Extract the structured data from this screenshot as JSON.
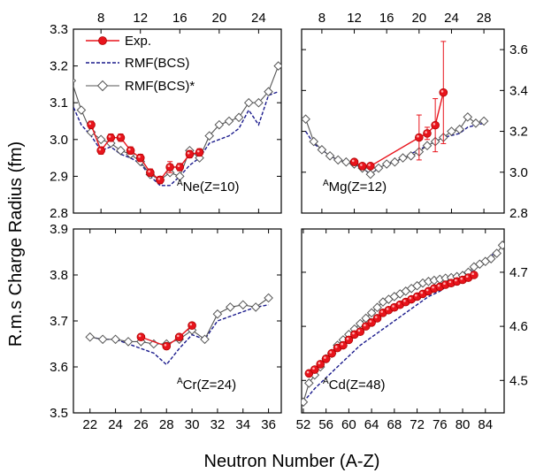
{
  "figure": {
    "ylabel": "R.m.s Charge Radius (fm)",
    "xlabel": "Neutron Number (A-Z)"
  },
  "legend": {
    "items": [
      {
        "label": "Exp.",
        "style": "exp"
      },
      {
        "label": "RMF(BCS)",
        "style": "dashed"
      },
      {
        "label": "RMF(BCS)*",
        "style": "diamond"
      }
    ]
  },
  "colors": {
    "exp": "#e8141c",
    "rmf": "#1a1a8c",
    "rmf_star": "#555555",
    "axis": "#000000"
  },
  "chart_data": [
    {
      "type": "line",
      "panel": "Ne",
      "label": "Ne(Z=10)",
      "label_sup": "A",
      "x_ticks": [
        8,
        12,
        16,
        20,
        24
      ],
      "x_axis_position": "top",
      "xlim": [
        5.2,
        26.3
      ],
      "y_ticks": [
        2.8,
        2.9,
        3.0,
        3.1,
        3.2,
        3.3
      ],
      "y_axis_position": "left",
      "ylim": [
        2.8,
        3.3
      ],
      "series": [
        {
          "name": "Exp.",
          "style": "exp",
          "x": [
            7,
            8,
            9,
            10,
            11,
            12,
            13,
            14,
            15,
            16,
            17,
            18
          ],
          "y": [
            3.04,
            2.97,
            3.005,
            3.005,
            2.97,
            2.95,
            2.91,
            2.89,
            2.925,
            2.925,
            2.96,
            2.965
          ],
          "err": [
            0.01,
            0.01,
            0.01,
            0.01,
            0.01,
            0.01,
            0.01,
            0.01,
            0.015,
            0.01,
            0.01,
            0.01
          ]
        },
        {
          "name": "RMF(BCS)",
          "style": "dashed",
          "x": [
            5,
            6,
            7,
            8,
            9,
            10,
            11,
            12,
            13,
            14,
            15,
            16,
            17,
            18,
            19,
            20,
            21,
            22,
            23,
            24,
            25,
            26
          ],
          "y": [
            3.1,
            3.04,
            3.01,
            2.97,
            2.98,
            2.96,
            2.95,
            2.935,
            2.9,
            2.875,
            2.875,
            2.9,
            2.93,
            2.95,
            2.99,
            3.0,
            3.01,
            3.03,
            3.08,
            3.04,
            3.12,
            3.13
          ]
        },
        {
          "name": "RMF(BCS)*",
          "style": "diamond",
          "x": [
            5,
            6,
            7,
            8,
            9,
            10,
            11,
            12,
            13,
            14,
            15,
            16,
            17,
            18,
            19,
            20,
            21,
            22,
            23,
            24,
            25,
            26
          ],
          "y": [
            3.16,
            3.08,
            3.02,
            3.0,
            2.99,
            2.97,
            2.96,
            2.94,
            2.905,
            2.89,
            2.91,
            2.9,
            2.97,
            2.95,
            3.01,
            3.04,
            3.05,
            3.06,
            3.1,
            3.1,
            3.13,
            3.2
          ]
        }
      ]
    },
    {
      "type": "line",
      "panel": "Mg",
      "label": "Mg(Z=12)",
      "label_sup": "A",
      "x_ticks": [
        8,
        12,
        16,
        20,
        24,
        28
      ],
      "x_axis_position": "top",
      "xlim": [
        5.5,
        30.5
      ],
      "y_ticks": [
        2.8,
        3.0,
        3.2,
        3.4,
        3.6
      ],
      "y_axis_position": "right",
      "ylim": [
        2.8,
        3.7
      ],
      "series": [
        {
          "name": "Exp.",
          "style": "exp",
          "x": [
            12,
            13,
            14,
            20,
            21,
            22,
            23
          ],
          "y": [
            3.05,
            3.03,
            3.03,
            3.17,
            3.19,
            3.23,
            3.39
          ],
          "err": [
            0.005,
            0.005,
            0.005,
            0.11,
            0.03,
            0.13,
            0.25
          ]
        },
        {
          "name": "RMF(BCS)",
          "style": "dashed",
          "x": [
            6,
            7,
            8,
            9,
            10,
            11,
            12,
            13,
            14,
            15,
            16,
            17,
            18,
            19,
            20,
            21,
            22,
            23,
            24,
            25,
            26,
            27,
            28
          ],
          "y": [
            3.2,
            3.14,
            3.11,
            3.08,
            3.06,
            3.05,
            3.04,
            3.02,
            2.99,
            3.02,
            3.04,
            3.05,
            3.07,
            3.09,
            3.11,
            3.13,
            3.15,
            3.17,
            3.18,
            3.19,
            3.22,
            3.23,
            3.24
          ]
        },
        {
          "name": "RMF(BCS)*",
          "style": "diamond",
          "x": [
            6,
            7,
            8,
            9,
            10,
            11,
            12,
            13,
            14,
            15,
            16,
            17,
            18,
            19,
            20,
            21,
            22,
            23,
            24,
            25,
            26,
            27,
            28
          ],
          "y": [
            3.26,
            3.15,
            3.11,
            3.08,
            3.06,
            3.05,
            3.04,
            3.02,
            2.99,
            3.02,
            3.04,
            3.05,
            3.07,
            3.08,
            3.1,
            3.13,
            3.15,
            3.17,
            3.2,
            3.21,
            3.27,
            3.24,
            3.25
          ]
        }
      ]
    },
    {
      "type": "line",
      "panel": "Cr",
      "label": "Cr(Z=24)",
      "label_sup": "A",
      "x_ticks": [
        22,
        24,
        26,
        28,
        30,
        32,
        34,
        36
      ],
      "x_axis_position": "bottom",
      "xlim": [
        20.7,
        37.0
      ],
      "y_ticks": [
        3.5,
        3.6,
        3.7,
        3.8,
        3.9
      ],
      "y_axis_position": "left",
      "ylim": [
        3.5,
        3.9
      ],
      "series": [
        {
          "name": "Exp.",
          "style": "exp",
          "x": [
            26,
            28,
            29,
            30
          ],
          "y": [
            3.665,
            3.645,
            3.665,
            3.69
          ],
          "err": [
            0.004,
            0.004,
            0.004,
            0.004
          ]
        },
        {
          "name": "RMF(BCS)",
          "style": "dashed",
          "x": [
            22,
            23,
            24,
            25,
            26,
            27,
            28,
            29,
            30,
            31,
            32,
            33,
            34,
            35,
            36
          ],
          "y": [
            3.665,
            3.66,
            3.66,
            3.65,
            3.64,
            3.63,
            3.605,
            3.64,
            3.67,
            3.66,
            3.7,
            3.71,
            3.72,
            3.73,
            3.735
          ]
        },
        {
          "name": "RMF(BCS)*",
          "style": "diamond",
          "x": [
            22,
            23,
            24,
            25,
            26,
            27,
            28,
            29,
            30,
            31,
            32,
            33,
            34,
            35,
            36
          ],
          "y": [
            3.665,
            3.66,
            3.66,
            3.655,
            3.655,
            3.65,
            3.65,
            3.66,
            3.68,
            3.66,
            3.715,
            3.73,
            3.735,
            3.73,
            3.75
          ]
        }
      ]
    },
    {
      "type": "line",
      "panel": "Cd",
      "label": "Cd(Z=48)",
      "label_sup": "A",
      "x_ticks": [
        52,
        56,
        60,
        64,
        68,
        72,
        76,
        80,
        84
      ],
      "x_axis_position": "bottom",
      "xlim": [
        51.7,
        87.3
      ],
      "y_ticks": [
        4.5,
        4.6,
        4.7
      ],
      "y_axis_position": "right",
      "ylim": [
        4.44,
        4.78
      ],
      "series": [
        {
          "name": "Exp.",
          "style": "exp",
          "x": [
            53,
            54,
            55,
            56,
            57,
            58,
            59,
            60,
            61,
            62,
            63,
            64,
            65,
            66,
            67,
            68,
            69,
            70,
            71,
            72,
            73,
            74,
            75,
            76,
            77,
            78,
            79,
            80,
            81,
            82
          ],
          "y": [
            4.513,
            4.52,
            4.53,
            4.54,
            4.55,
            4.56,
            4.565,
            4.575,
            4.585,
            4.59,
            4.6,
            4.607,
            4.615,
            4.625,
            4.63,
            4.635,
            4.64,
            4.645,
            4.65,
            4.655,
            4.66,
            4.665,
            4.67,
            4.673,
            4.677,
            4.68,
            4.683,
            4.686,
            4.69,
            4.695
          ],
          "err": [
            0.004,
            0.004,
            0.004,
            0.004,
            0.004,
            0.004,
            0.004,
            0.004,
            0.004,
            0.004,
            0.004,
            0.004,
            0.004,
            0.004,
            0.004,
            0.004,
            0.004,
            0.004,
            0.004,
            0.004,
            0.004,
            0.004,
            0.004,
            0.004,
            0.004,
            0.004,
            0.004,
            0.004,
            0.004,
            0.004
          ]
        },
        {
          "name": "RMF(BCS)",
          "style": "dashed",
          "x": [
            52,
            54,
            56,
            58,
            60,
            62,
            64,
            66,
            68,
            70,
            72,
            74,
            76,
            78,
            80,
            82,
            84,
            86
          ],
          "y": [
            4.46,
            4.485,
            4.505,
            4.525,
            4.545,
            4.565,
            4.58,
            4.595,
            4.61,
            4.625,
            4.64,
            4.655,
            4.665,
            4.68,
            4.69,
            4.705,
            4.72,
            4.74
          ]
        },
        {
          "name": "RMF(BCS)*",
          "style": "diamond",
          "x": [
            52,
            53,
            54,
            55,
            56,
            57,
            58,
            59,
            60,
            61,
            62,
            63,
            64,
            65,
            66,
            67,
            68,
            69,
            70,
            71,
            72,
            73,
            74,
            75,
            76,
            77,
            78,
            79,
            80,
            81,
            82,
            83,
            84,
            85,
            86,
            87
          ],
          "y": [
            4.46,
            4.495,
            4.51,
            4.525,
            4.54,
            4.55,
            4.565,
            4.575,
            4.585,
            4.595,
            4.605,
            4.615,
            4.625,
            4.635,
            4.645,
            4.65,
            4.655,
            4.66,
            4.665,
            4.67,
            4.675,
            4.68,
            4.683,
            4.685,
            4.687,
            4.689,
            4.69,
            4.692,
            4.694,
            4.7,
            4.71,
            4.715,
            4.72,
            4.725,
            4.735,
            4.75
          ]
        }
      ]
    }
  ]
}
